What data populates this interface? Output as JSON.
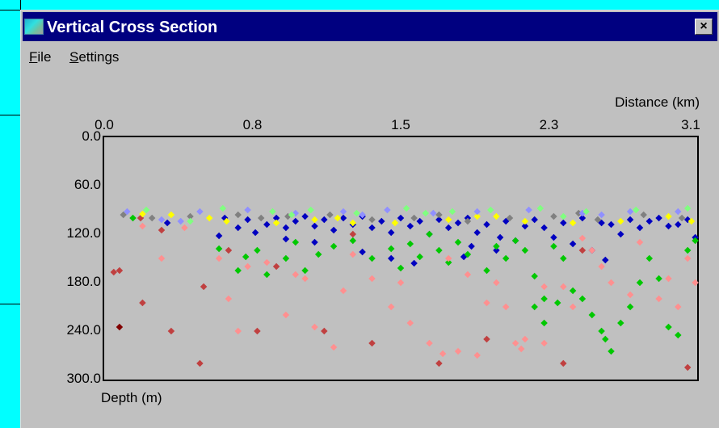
{
  "window": {
    "title": "Vertical Cross Section",
    "close_glyph": "×",
    "icon": "app-icon"
  },
  "menu": {
    "file_underline": "F",
    "file_rest": "ile",
    "settings_underline": "S",
    "settings_rest": "ettings"
  },
  "chart_data": {
    "type": "scatter",
    "xlabel": "Distance (km)",
    "ylabel": "Depth (m)",
    "x_ticks": [
      "0.0",
      "0.8",
      "1.5",
      "2.3",
      "3.1"
    ],
    "y_ticks": [
      "0.0",
      "60.0",
      "120.0",
      "180.0",
      "240.0",
      "300.0"
    ],
    "xlim": [
      0,
      3.1
    ],
    "ylim": [
      0,
      300
    ],
    "y_inverted": true,
    "series": [
      {
        "color": "#0000c0",
        "points": [
          [
            0.33,
            106
          ],
          [
            0.6,
            122
          ],
          [
            0.63,
            100
          ],
          [
            0.7,
            112
          ],
          [
            0.75,
            102
          ],
          [
            0.79,
            118
          ],
          [
            0.85,
            108
          ],
          [
            0.9,
            100
          ],
          [
            0.95,
            112
          ],
          [
            1.0,
            104
          ],
          [
            1.05,
            98
          ],
          [
            1.1,
            110
          ],
          [
            1.15,
            102
          ],
          [
            1.2,
            115
          ],
          [
            1.25,
            100
          ],
          [
            1.3,
            108
          ],
          [
            1.35,
            98
          ],
          [
            1.4,
            112
          ],
          [
            1.45,
            104
          ],
          [
            1.5,
            118
          ],
          [
            1.55,
            100
          ],
          [
            1.6,
            110
          ],
          [
            1.65,
            104
          ],
          [
            1.7,
            120
          ],
          [
            1.75,
            102
          ],
          [
            1.8,
            112
          ],
          [
            1.85,
            106
          ],
          [
            1.9,
            100
          ],
          [
            1.95,
            118
          ],
          [
            2.0,
            108
          ],
          [
            2.05,
            140
          ],
          [
            2.1,
            104
          ],
          [
            2.15,
            128
          ],
          [
            2.2,
            110
          ],
          [
            2.25,
            102
          ],
          [
            2.3,
            112
          ],
          [
            2.35,
            124
          ],
          [
            2.4,
            106
          ],
          [
            2.45,
            132
          ],
          [
            2.5,
            100
          ],
          [
            2.55,
            140
          ],
          [
            2.6,
            106
          ],
          [
            2.65,
            108
          ],
          [
            2.7,
            120
          ],
          [
            2.75,
            102
          ],
          [
            2.8,
            112
          ],
          [
            2.85,
            104
          ],
          [
            2.9,
            100
          ],
          [
            2.95,
            110
          ],
          [
            3.0,
            108
          ],
          [
            3.05,
            102
          ],
          [
            3.09,
            124
          ],
          [
            1.5,
            150
          ],
          [
            1.62,
            156
          ],
          [
            1.88,
            148
          ],
          [
            1.92,
            135
          ],
          [
            2.07,
            124
          ],
          [
            1.1,
            130
          ],
          [
            0.95,
            126
          ],
          [
            1.35,
            142
          ],
          [
            2.62,
            152
          ]
        ]
      },
      {
        "color": "#00c800",
        "points": [
          [
            0.15,
            100
          ],
          [
            0.6,
            138
          ],
          [
            0.7,
            165
          ],
          [
            0.74,
            148
          ],
          [
            0.8,
            140
          ],
          [
            0.85,
            170
          ],
          [
            0.95,
            150
          ],
          [
            1.0,
            130
          ],
          [
            1.05,
            165
          ],
          [
            1.12,
            145
          ],
          [
            1.2,
            135
          ],
          [
            1.3,
            128
          ],
          [
            1.4,
            150
          ],
          [
            1.5,
            138
          ],
          [
            1.55,
            162
          ],
          [
            1.6,
            132
          ],
          [
            1.65,
            148
          ],
          [
            1.7,
            120
          ],
          [
            1.75,
            140
          ],
          [
            1.8,
            155
          ],
          [
            1.85,
            130
          ],
          [
            1.9,
            145
          ],
          [
            2.0,
            165
          ],
          [
            2.05,
            135
          ],
          [
            2.1,
            150
          ],
          [
            2.15,
            128
          ],
          [
            2.2,
            140
          ],
          [
            2.25,
            172
          ],
          [
            2.3,
            200
          ],
          [
            2.35,
            135
          ],
          [
            2.4,
            150
          ],
          [
            2.45,
            190
          ],
          [
            2.5,
            200
          ],
          [
            2.55,
            220
          ],
          [
            2.6,
            240
          ],
          [
            2.65,
            265
          ],
          [
            2.7,
            230
          ],
          [
            2.75,
            210
          ],
          [
            2.8,
            180
          ],
          [
            2.85,
            150
          ],
          [
            2.9,
            175
          ],
          [
            2.95,
            235
          ],
          [
            3.0,
            245
          ],
          [
            3.05,
            140
          ],
          [
            3.09,
            128
          ],
          [
            2.62,
            250
          ],
          [
            2.25,
            210
          ],
          [
            2.3,
            230
          ],
          [
            2.37,
            205
          ]
        ]
      },
      {
        "color": "#ff9090",
        "points": [
          [
            0.2,
            110
          ],
          [
            0.3,
            150
          ],
          [
            0.42,
            112
          ],
          [
            0.6,
            150
          ],
          [
            0.65,
            200
          ],
          [
            0.7,
            240
          ],
          [
            0.75,
            160
          ],
          [
            0.85,
            155
          ],
          [
            0.95,
            220
          ],
          [
            1.0,
            170
          ],
          [
            1.05,
            175
          ],
          [
            1.1,
            235
          ],
          [
            1.2,
            260
          ],
          [
            1.25,
            190
          ],
          [
            1.3,
            145
          ],
          [
            1.4,
            175
          ],
          [
            1.5,
            210
          ],
          [
            1.55,
            180
          ],
          [
            1.6,
            230
          ],
          [
            1.7,
            255
          ],
          [
            1.8,
            150
          ],
          [
            1.85,
            265
          ],
          [
            1.9,
            170
          ],
          [
            1.95,
            270
          ],
          [
            2.0,
            205
          ],
          [
            2.05,
            180
          ],
          [
            2.1,
            210
          ],
          [
            2.15,
            255
          ],
          [
            2.2,
            250
          ],
          [
            2.3,
            185
          ],
          [
            2.4,
            185
          ],
          [
            2.45,
            210
          ],
          [
            2.5,
            125
          ],
          [
            2.55,
            140
          ],
          [
            2.6,
            160
          ],
          [
            2.65,
            180
          ],
          [
            2.75,
            195
          ],
          [
            2.8,
            130
          ],
          [
            2.9,
            200
          ],
          [
            2.95,
            175
          ],
          [
            3.0,
            210
          ],
          [
            3.05,
            150
          ],
          [
            3.09,
            180
          ],
          [
            2.3,
            255
          ],
          [
            2.18,
            262
          ],
          [
            1.77,
            268
          ]
        ]
      },
      {
        "color": "#c04040",
        "points": [
          [
            0.05,
            167
          ],
          [
            0.08,
            165
          ],
          [
            0.19,
            100
          ],
          [
            0.2,
            205
          ],
          [
            0.3,
            115
          ],
          [
            0.35,
            240
          ],
          [
            0.5,
            280
          ],
          [
            0.52,
            185
          ],
          [
            0.65,
            140
          ],
          [
            0.8,
            240
          ],
          [
            0.9,
            160
          ],
          [
            1.15,
            240
          ],
          [
            1.3,
            120
          ],
          [
            1.4,
            255
          ],
          [
            1.75,
            280
          ],
          [
            2.0,
            250
          ],
          [
            2.4,
            280
          ],
          [
            2.5,
            140
          ],
          [
            3.05,
            285
          ]
        ]
      },
      {
        "color": "#800000",
        "points": [
          [
            0.08,
            235
          ]
        ]
      },
      {
        "color": "#ffff00",
        "points": [
          [
            0.2,
            95
          ],
          [
            0.35,
            96
          ],
          [
            0.64,
            104
          ],
          [
            0.9,
            106
          ],
          [
            1.1,
            102
          ],
          [
            1.3,
            106
          ],
          [
            1.52,
            106
          ],
          [
            1.8,
            102
          ],
          [
            2.05,
            98
          ],
          [
            2.2,
            104
          ],
          [
            2.45,
            106
          ],
          [
            2.7,
            104
          ],
          [
            2.95,
            98
          ],
          [
            3.07,
            104
          ],
          [
            0.55,
            100
          ],
          [
            1.22,
            100
          ],
          [
            1.95,
            98
          ]
        ]
      },
      {
        "color": "#808080",
        "points": [
          [
            0.1,
            96
          ],
          [
            0.25,
            100
          ],
          [
            0.45,
            98
          ],
          [
            0.7,
            96
          ],
          [
            0.96,
            98
          ],
          [
            1.18,
            96
          ],
          [
            1.4,
            102
          ],
          [
            1.62,
            100
          ],
          [
            1.9,
            104
          ],
          [
            2.12,
            100
          ],
          [
            2.35,
            98
          ],
          [
            2.58,
            102
          ],
          [
            2.82,
            96
          ],
          [
            3.02,
            100
          ],
          [
            1.75,
            96
          ],
          [
            0.82,
            100
          ],
          [
            2.48,
            94
          ]
        ]
      },
      {
        "color": "#9090ff",
        "points": [
          [
            0.12,
            92
          ],
          [
            0.3,
            102
          ],
          [
            0.5,
            92
          ],
          [
            0.75,
            90
          ],
          [
            1.0,
            94
          ],
          [
            1.25,
            92
          ],
          [
            1.48,
            90
          ],
          [
            1.72,
            94
          ],
          [
            1.95,
            92
          ],
          [
            2.22,
            90
          ],
          [
            2.5,
            94
          ],
          [
            2.75,
            92
          ],
          [
            3.0,
            92
          ],
          [
            0.4,
            104
          ],
          [
            1.35,
            96
          ],
          [
            2.6,
            96
          ]
        ]
      },
      {
        "color": "#80ff80",
        "points": [
          [
            0.22,
            90
          ],
          [
            0.45,
            104
          ],
          [
            0.62,
            88
          ],
          [
            0.88,
            92
          ],
          [
            1.08,
            90
          ],
          [
            1.32,
            94
          ],
          [
            1.58,
            88
          ],
          [
            1.82,
            92
          ],
          [
            2.02,
            90
          ],
          [
            2.28,
            88
          ],
          [
            2.52,
            92
          ],
          [
            2.78,
            90
          ],
          [
            3.05,
            88
          ],
          [
            0.98,
            96
          ],
          [
            1.68,
            94
          ],
          [
            2.4,
            98
          ]
        ]
      }
    ]
  }
}
